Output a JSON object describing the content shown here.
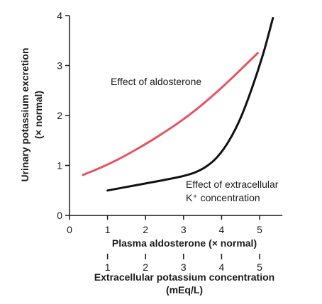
{
  "chart_data": {
    "type": "line",
    "xlabel": "Plasma aldosterone (× normal)",
    "xlabel2_line1": "Extracellular potassium concentration",
    "xlabel2_line2": "(mEq/L)",
    "ylabel_line1": "Urinary potassium excretion",
    "ylabel_line2": "(× normal)",
    "xlim": [
      0,
      5.6
    ],
    "ylim": [
      0,
      4
    ],
    "x_ticks": [
      "0",
      "1",
      "2",
      "3",
      "4",
      "5"
    ],
    "x2_ticks": [
      "1",
      "2",
      "3",
      "4",
      "5"
    ],
    "y_ticks": [
      "0",
      "1",
      "2",
      "3",
      "4"
    ],
    "grid": false,
    "series": [
      {
        "name": "Effect of aldosterone",
        "color": "#e8525f",
        "x": [
          0.35,
          0.8,
          1.3,
          1.8,
          2.3,
          2.8,
          3.3,
          3.8,
          4.3,
          4.95
        ],
        "y": [
          0.81,
          0.95,
          1.13,
          1.34,
          1.57,
          1.82,
          2.1,
          2.42,
          2.77,
          3.25
        ]
      },
      {
        "name_line1": "Effect of extracellular",
        "name_line2": "K⁺ concentration",
        "color": "#111111",
        "x": [
          1.0,
          1.5,
          2.0,
          2.5,
          3.0,
          3.3,
          3.6,
          3.9,
          4.2,
          4.5,
          4.8,
          5.1,
          5.35
        ],
        "y": [
          0.5,
          0.57,
          0.64,
          0.71,
          0.79,
          0.86,
          0.98,
          1.18,
          1.5,
          1.95,
          2.55,
          3.25,
          3.95
        ]
      }
    ]
  }
}
